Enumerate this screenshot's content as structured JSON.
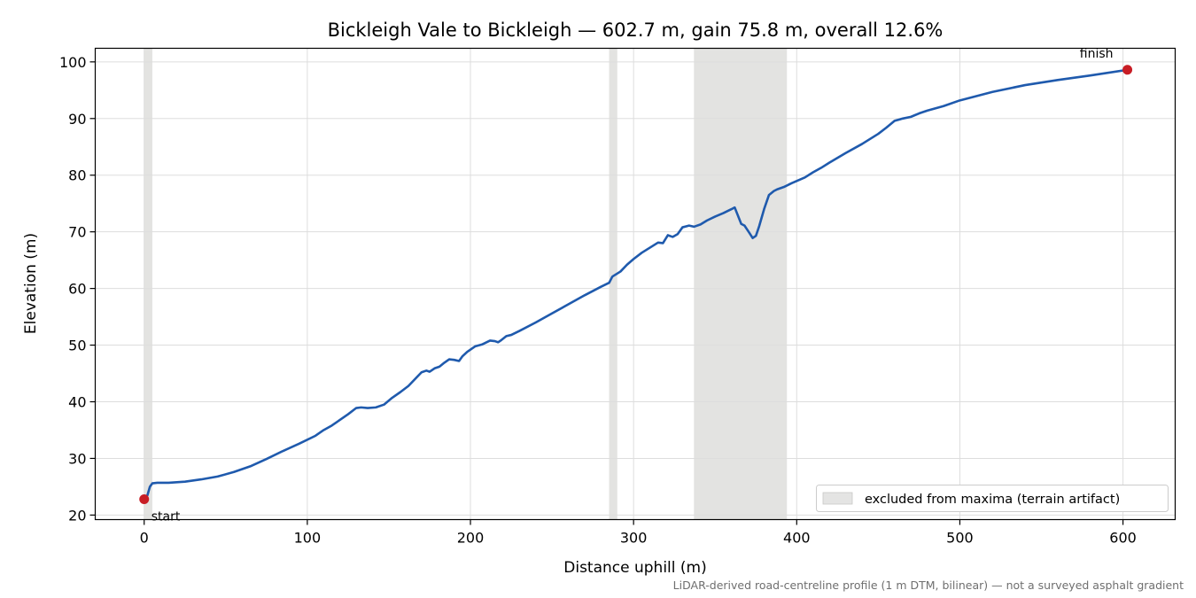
{
  "chart_data": {
    "type": "line",
    "title": "Bickleigh Vale to Bickleigh — 602.7 m, gain 75.8 m, overall 12.6%",
    "xlabel": "Distance uphill (m)",
    "ylabel": "Elevation (m)",
    "xlim": [
      -30,
      632
    ],
    "ylim": [
      19.2,
      102.4
    ],
    "x_ticks": [
      0,
      100,
      200,
      300,
      400,
      500,
      600
    ],
    "y_ticks": [
      20,
      30,
      40,
      50,
      60,
      70,
      80,
      90,
      100
    ],
    "grid": true,
    "legend_position": "lower-right",
    "colors": {
      "line": "#1f5aad",
      "marker": "#c81d25",
      "excluded": "#d9d9d7",
      "grid": "#dddddd"
    },
    "series": [
      {
        "x": [
          0,
          2,
          3.5,
          5,
          8,
          15,
          25,
          35,
          45,
          55,
          65,
          75,
          85,
          95,
          105,
          110,
          115,
          120,
          125,
          130,
          133,
          137,
          142,
          147,
          152,
          157,
          162,
          167,
          170,
          173,
          175,
          178,
          181,
          184,
          187,
          190,
          193,
          195,
          198,
          203,
          207,
          212,
          215,
          217,
          219,
          222,
          225,
          230,
          240,
          250,
          260,
          270,
          280,
          285,
          287,
          292,
          296,
          300,
          305,
          310,
          315,
          318,
          321,
          324,
          327,
          330,
          334,
          337,
          341,
          345,
          350,
          355,
          360,
          362,
          363.5,
          366,
          368,
          371,
          373,
          375,
          377,
          380,
          383,
          386,
          388,
          392,
          397,
          405,
          410,
          415,
          420,
          430,
          440,
          450,
          455,
          460,
          465,
          470,
          475,
          480,
          490,
          500,
          520,
          540,
          560,
          580,
          602.7
        ],
        "y": [
          22.8,
          23.5,
          25.0,
          25.6,
          25.7,
          25.7,
          25.9,
          26.3,
          26.8,
          27.6,
          28.6,
          29.9,
          31.3,
          32.6,
          34.0,
          35.0,
          35.8,
          36.8,
          37.8,
          38.9,
          39.0,
          38.9,
          39.0,
          39.5,
          40.7,
          41.7,
          42.8,
          44.3,
          45.2,
          45.5,
          45.3,
          45.9,
          46.2,
          46.9,
          47.5,
          47.4,
          47.2,
          48.0,
          48.8,
          49.8,
          50.1,
          50.8,
          50.7,
          50.5,
          50.9,
          51.6,
          51.8,
          52.5,
          54.0,
          55.6,
          57.2,
          58.8,
          60.3,
          61.0,
          62.1,
          63.0,
          64.2,
          65.2,
          66.3,
          67.2,
          68.1,
          68.0,
          69.4,
          69.1,
          69.6,
          70.8,
          71.1,
          70.9,
          71.3,
          72.0,
          72.7,
          73.3,
          74.0,
          74.3,
          73.2,
          71.4,
          71.1,
          69.8,
          68.9,
          69.3,
          71.0,
          74.0,
          76.5,
          77.2,
          77.5,
          77.9,
          78.6,
          79.6,
          80.5,
          81.3,
          82.2,
          83.9,
          85.5,
          87.3,
          88.4,
          89.6,
          90.0,
          90.3,
          90.9,
          91.4,
          92.2,
          93.2,
          94.7,
          95.9,
          96.8,
          97.6,
          98.6
        ]
      }
    ],
    "excluded_ranges": [
      [
        0,
        5
      ],
      [
        285,
        290
      ],
      [
        337,
        394
      ]
    ],
    "markers": [
      {
        "x": 0,
        "y": 22.8,
        "label": "start"
      },
      {
        "x": 602.7,
        "y": 98.6,
        "label": "finish"
      }
    ],
    "legend": [
      {
        "label": "excluded from maxima (terrain artifact)"
      }
    ],
    "footnote": "LiDAR-derived road-centreline profile (1 m DTM, bilinear) — not a surveyed asphalt gradient"
  }
}
